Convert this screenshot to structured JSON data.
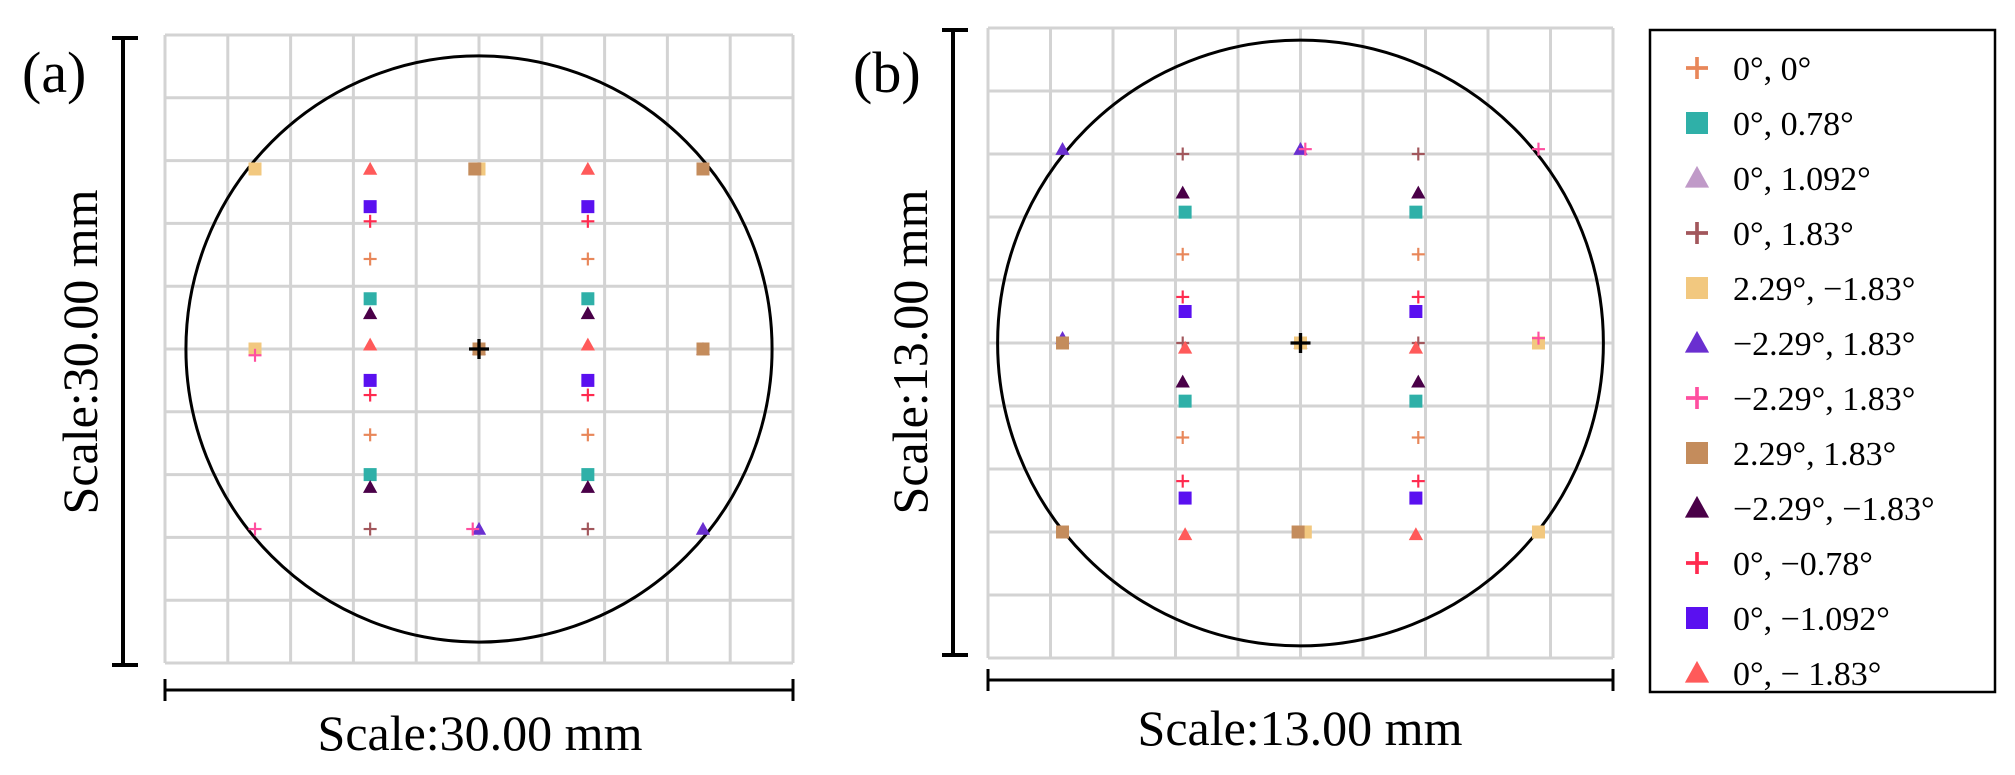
{
  "legend": [
    {
      "label": "0°, 0°",
      "marker": "plus",
      "color": "#e8875a"
    },
    {
      "label": "0°, 0.78°",
      "marker": "square",
      "color": "#2fb0a8"
    },
    {
      "label": "0°, 1.092°",
      "marker": "triangle",
      "color": "#c09ac8"
    },
    {
      "label": "0°, 1.83°",
      "marker": "plus",
      "color": "#a2575c"
    },
    {
      "label": "2.29°, −1.83°",
      "marker": "square",
      "color": "#f2c87f"
    },
    {
      "label": "−2.29°, 1.83°",
      "marker": "triangle",
      "color": "#6a2fd0"
    },
    {
      "label": "−2.29°, 1.83°",
      "marker": "plus",
      "color": "#ff4fa0"
    },
    {
      "label": "2.29°, 1.83°",
      "marker": "square",
      "color": "#c48c5c"
    },
    {
      "label": "−2.29°, −1.83°",
      "marker": "triangle",
      "color": "#4a0048"
    },
    {
      "label": "0°, −0.78°",
      "marker": "plus",
      "color": "#ff2a4f"
    },
    {
      "label": "0°, −1.092°",
      "marker": "square",
      "color": "#5a10f0"
    },
    {
      "label": "0°, − 1.83°",
      "marker": "triangle",
      "color": "#ff5a5a"
    }
  ],
  "chart_data": [
    {
      "type": "scatter",
      "panel": "(a)",
      "xlabel": "Scale:30.00 mm",
      "ylabel": "Scale:30.00 mm",
      "xlim": [
        -15,
        15
      ],
      "ylim": [
        -15,
        15
      ],
      "grid": true,
      "circle_radius": 14,
      "series": [
        {
          "name": "0°, 0°",
          "points": [
            [
              0,
              0
            ],
            [
              -5.2,
              -4.1
            ],
            [
              5.2,
              -4.1
            ],
            [
              -5.2,
              4.3
            ],
            [
              5.2,
              4.3
            ]
          ]
        },
        {
          "name": "0°, 0.78°",
          "points": [
            [
              0,
              0
            ],
            [
              -5.2,
              2.4
            ],
            [
              5.2,
              2.4
            ],
            [
              -5.2,
              -6.0
            ],
            [
              5.2,
              -6.0
            ]
          ]
        },
        {
          "name": "0°, 1.092°",
          "points": [
            [
              0,
              0
            ],
            [
              10.7,
              0
            ]
          ]
        },
        {
          "name": "0°, 1.83°",
          "points": [
            [
              0,
              0
            ],
            [
              -5.2,
              -8.6
            ],
            [
              5.2,
              -8.6
            ]
          ]
        },
        {
          "name": "2.29°, −1.83°",
          "points": [
            [
              -10.7,
              0
            ],
            [
              -10.7,
              8.6
            ],
            [
              0,
              8.6
            ]
          ]
        },
        {
          "name": "−2.29°, 1.83°",
          "points": [
            [
              0,
              -8.6
            ],
            [
              10.7,
              -8.6
            ]
          ]
        },
        {
          "name": "−2.29°, 1.83°",
          "points": [
            [
              -10.7,
              -0.3
            ],
            [
              -10.7,
              -8.6
            ],
            [
              -0.3,
              -8.6
            ]
          ]
        },
        {
          "name": "2.29°, 1.83°",
          "points": [
            [
              10.7,
              0
            ],
            [
              10.7,
              8.6
            ],
            [
              -0.2,
              8.6
            ],
            [
              0,
              0
            ]
          ]
        },
        {
          "name": "−2.29°, −1.83°",
          "points": [
            [
              -5.2,
              1.7
            ],
            [
              5.2,
              1.7
            ],
            [
              -5.2,
              -6.6
            ],
            [
              5.2,
              -6.6
            ]
          ]
        },
        {
          "name": "0°, −0.78°",
          "points": [
            [
              -5.2,
              6.1
            ],
            [
              5.2,
              6.1
            ],
            [
              -5.2,
              -2.2
            ],
            [
              5.2,
              -2.2
            ]
          ]
        },
        {
          "name": "0°, −1.092°",
          "points": [
            [
              -5.2,
              6.8
            ],
            [
              5.2,
              6.8
            ],
            [
              -5.2,
              -1.5
            ],
            [
              5.2,
              -1.5
            ]
          ]
        },
        {
          "name": "0°, − 1.83°",
          "points": [
            [
              -5.2,
              8.6
            ],
            [
              5.2,
              8.6
            ],
            [
              -5.2,
              0.2
            ],
            [
              5.2,
              0.2
            ]
          ]
        }
      ]
    },
    {
      "type": "scatter",
      "panel": "(b)",
      "xlabel": "Scale:13.00 mm",
      "ylabel": "Scale:13.00 mm",
      "xlim": [
        -6.5,
        6.5
      ],
      "ylim": [
        -6.5,
        6.5
      ],
      "grid": true,
      "circle_radius": 6.3,
      "series": [
        {
          "name": "0°, 0°",
          "points": [
            [
              0,
              0
            ],
            [
              -2.45,
              -1.95
            ],
            [
              2.45,
              -1.95
            ],
            [
              -2.45,
              1.83
            ],
            [
              2.45,
              1.83
            ]
          ]
        },
        {
          "name": "0°, 0.78°",
          "points": [
            [
              0,
              0
            ],
            [
              -2.4,
              2.7
            ],
            [
              2.4,
              2.7
            ],
            [
              -2.4,
              -1.2
            ],
            [
              2.4,
              -1.2
            ]
          ]
        },
        {
          "name": "0°, 1.092°",
          "points": [
            [
              0,
              0
            ]
          ]
        },
        {
          "name": "0°, 1.83°",
          "points": [
            [
              -2.45,
              3.9
            ],
            [
              2.45,
              3.9
            ],
            [
              -2.45,
              0
            ],
            [
              2.45,
              0
            ]
          ]
        },
        {
          "name": "2.29°, −1.83°",
          "points": [
            [
              4.95,
              0
            ],
            [
              4.95,
              -3.9
            ],
            [
              0.1,
              -3.9
            ],
            [
              0,
              0
            ]
          ]
        },
        {
          "name": "−2.29°, 1.83°",
          "points": [
            [
              -4.95,
              0.1
            ],
            [
              -4.95,
              4.0
            ],
            [
              0,
              4.0
            ]
          ]
        },
        {
          "name": "−2.29°, 1.83°",
          "points": [
            [
              4.95,
              0.1
            ],
            [
              4.95,
              4.0
            ],
            [
              0.1,
              4.0
            ]
          ]
        },
        {
          "name": "2.29°, 1.83°",
          "points": [
            [
              -4.95,
              0
            ],
            [
              -4.95,
              -3.9
            ],
            [
              -0.05,
              -3.9
            ]
          ]
        },
        {
          "name": "−2.29°, −1.83°",
          "points": [
            [
              -2.45,
              3.1
            ],
            [
              2.45,
              3.1
            ],
            [
              -2.45,
              -0.8
            ],
            [
              2.45,
              -0.8
            ]
          ]
        },
        {
          "name": "0°, −0.78°",
          "points": [
            [
              -2.45,
              0.95
            ],
            [
              2.45,
              0.95
            ],
            [
              -2.45,
              -2.85
            ],
            [
              2.45,
              -2.85
            ]
          ]
        },
        {
          "name": "0°, −1.092°",
          "points": [
            [
              -2.4,
              0.65
            ],
            [
              2.4,
              0.65
            ],
            [
              -2.4,
              -3.2
            ],
            [
              2.4,
              -3.2
            ]
          ]
        },
        {
          "name": "0°, − 1.83°",
          "points": [
            [
              -2.4,
              -0.1
            ],
            [
              2.4,
              -0.1
            ],
            [
              -2.4,
              -3.95
            ],
            [
              2.4,
              -3.95
            ]
          ]
        }
      ]
    }
  ]
}
